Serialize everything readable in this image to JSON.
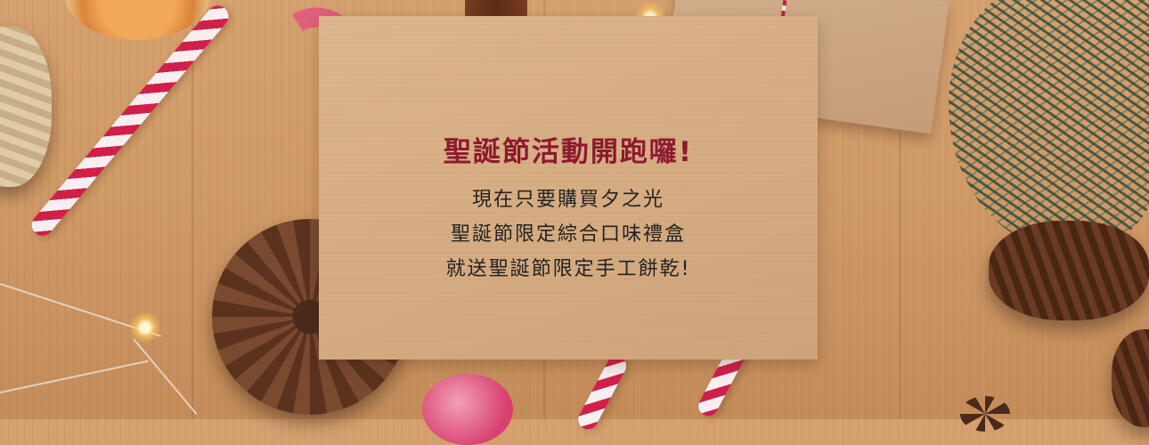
{
  "banner": {
    "headline": "聖誕節活動開跑囉!",
    "lines": [
      "現在只要購買夕之光",
      "聖誕節限定綜合口味禮盒",
      "就送聖誕節限定手工餅乾!"
    ]
  },
  "colors": {
    "headline": "#8c1a2e",
    "body_text": "#222222",
    "wood": "#d09a68",
    "kraft_paper": "#d8ae84"
  }
}
